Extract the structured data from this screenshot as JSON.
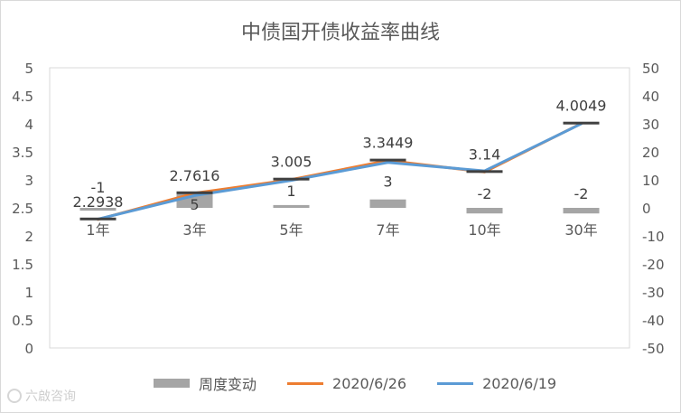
{
  "chart_data": {
    "type": "bar+line",
    "title": "中债国开债收益率曲线",
    "categories": [
      "1年",
      "3年",
      "5年",
      "7年",
      "10年",
      "30年"
    ],
    "bar_series": {
      "name": "周度变动",
      "values": [
        -1,
        5,
        1,
        3,
        -2,
        -2
      ],
      "axis": "right",
      "color": "#a5a5a5"
    },
    "line_series": [
      {
        "name": "2020/6/26",
        "values": [
          2.2938,
          2.7616,
          3.005,
          3.3449,
          3.14,
          4.0049
        ],
        "color": "#ed7d31",
        "labeled": true
      },
      {
        "name": "2020/6/19",
        "values": [
          2.3,
          2.72,
          2.99,
          3.31,
          3.16,
          4.0
        ],
        "color": "#5b9bd5",
        "labeled": false
      }
    ],
    "left_axis": {
      "ylim": [
        0,
        5
      ],
      "ticks": [
        "0",
        "0.5",
        "1",
        "1.5",
        "2",
        "2.5",
        "3",
        "3.5",
        "4",
        "4.5",
        "5"
      ]
    },
    "right_axis": {
      "ylim": [
        -50,
        50
      ],
      "ticks": [
        "-50",
        "-40",
        "-30",
        "-20",
        "-10",
        "0",
        "10",
        "20",
        "30",
        "40",
        "50"
      ]
    },
    "line_labels": [
      "2.2938",
      "2.7616",
      "3.005",
      "3.3449",
      "3.14",
      "4.0049"
    ],
    "bar_labels": [
      "-1",
      "5",
      "1",
      "3",
      "-2",
      "-2"
    ],
    "grid": false,
    "legend_position": "bottom"
  },
  "legend": {
    "bar": "周度变动",
    "line1": "2020/6/26",
    "line2": "2020/6/19"
  },
  "watermark": "六啟咨询"
}
